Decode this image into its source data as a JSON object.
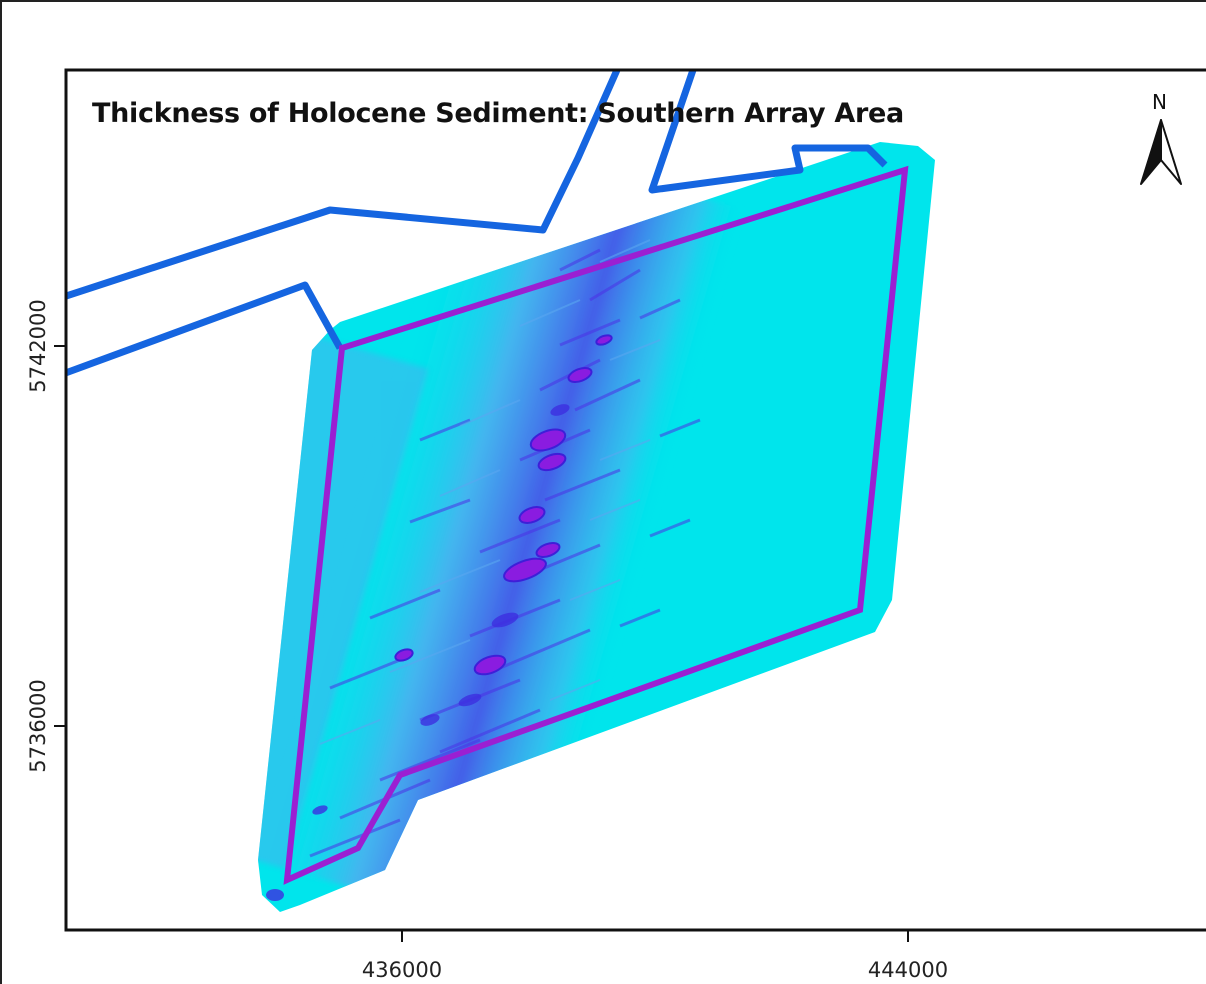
{
  "map": {
    "title": "Thickness of Holocene Sediment: Southern Array Area",
    "north_arrow": {
      "label": "N",
      "icon": "north-arrow-icon"
    },
    "x_axis": {
      "ticks": [
        "436000",
        "444000"
      ]
    },
    "y_axis": {
      "ticks": [
        "5742000",
        "5736000"
      ]
    },
    "colors": {
      "raster_base": "#00e5ec",
      "raster_mid": "#5aa6f0",
      "raster_dark": "#4a32e6",
      "raster_deep": "#8a1ce0",
      "cable_corridor": "#1565e0",
      "array_boundary": "#9b1fd2"
    }
  }
}
